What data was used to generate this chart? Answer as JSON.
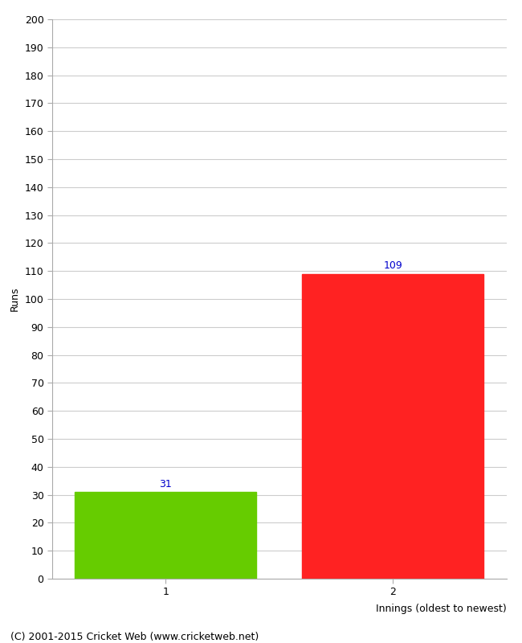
{
  "categories": [
    "1",
    "2"
  ],
  "values": [
    31,
    109
  ],
  "bar_colors": [
    "#66cc00",
    "#ff2222"
  ],
  "xlabel": "Innings (oldest to newest)",
  "ylabel": "Runs",
  "ylim": [
    0,
    200
  ],
  "ytick_step": 10,
  "bar_width": 0.8,
  "background_color": "#ffffff",
  "grid_color": "#cccccc",
  "label_color": "#0000cc",
  "footer_text": "(C) 2001-2015 Cricket Web (www.cricketweb.net)",
  "footer_fontsize": 9
}
